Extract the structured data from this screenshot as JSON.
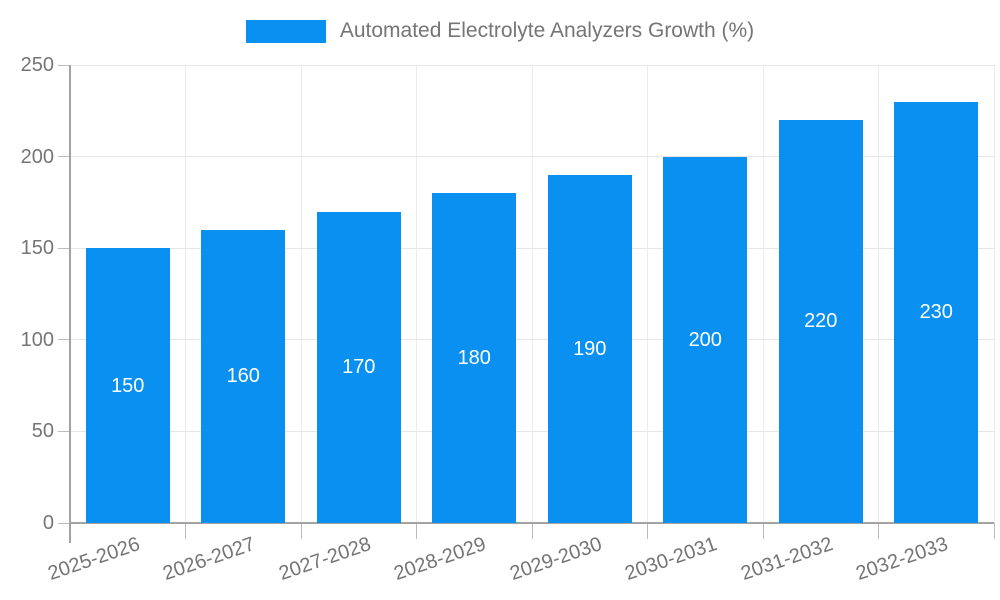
{
  "legend": {
    "label": "Automated Electrolyte Analyzers Growth (%)"
  },
  "chart_data": {
    "type": "bar",
    "title": "Automated Electrolyte Analyzers Growth (%)",
    "categories": [
      "2025-2026",
      "2026-2027",
      "2027-2028",
      "2028-2029",
      "2029-2030",
      "2030-2031",
      "2031-2032",
      "2032-2033"
    ],
    "values": [
      150,
      160,
      170,
      180,
      190,
      200,
      220,
      230
    ],
    "xlabel": "",
    "ylabel": "",
    "ylim": [
      0,
      250
    ],
    "yticks": [
      0,
      50,
      100,
      150,
      200,
      250
    ],
    "grid": true,
    "legend_position": "top",
    "bar_color": "#0a90f0",
    "value_label_color": "#ffffff",
    "axis_text_color": "#757575",
    "grid_color": "#e6e6e6",
    "axis_line_color": "#a3a3a3"
  }
}
